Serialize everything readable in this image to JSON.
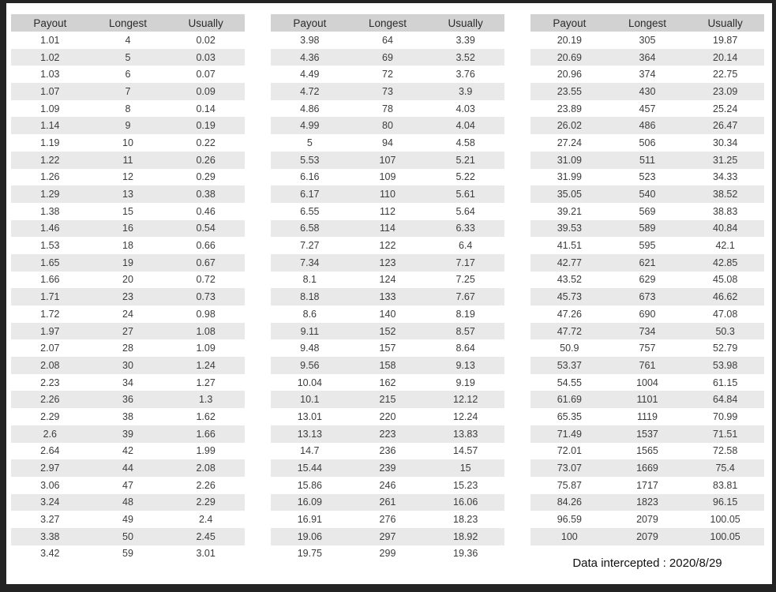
{
  "columns": [
    "Payout",
    "Longest",
    "Usually"
  ],
  "tables": [
    {
      "rows": [
        [
          "1.01",
          "4",
          "0.02"
        ],
        [
          "1.02",
          "5",
          "0.03"
        ],
        [
          "1.03",
          "6",
          "0.07"
        ],
        [
          "1.07",
          "7",
          "0.09"
        ],
        [
          "1.09",
          "8",
          "0.14"
        ],
        [
          "1.14",
          "9",
          "0.19"
        ],
        [
          "1.19",
          "10",
          "0.22"
        ],
        [
          "1.22",
          "11",
          "0.26"
        ],
        [
          "1.26",
          "12",
          "0.29"
        ],
        [
          "1.29",
          "13",
          "0.38"
        ],
        [
          "1.38",
          "15",
          "0.46"
        ],
        [
          "1.46",
          "16",
          "0.54"
        ],
        [
          "1.53",
          "18",
          "0.66"
        ],
        [
          "1.65",
          "19",
          "0.67"
        ],
        [
          "1.66",
          "20",
          "0.72"
        ],
        [
          "1.71",
          "23",
          "0.73"
        ],
        [
          "1.72",
          "24",
          "0.98"
        ],
        [
          "1.97",
          "27",
          "1.08"
        ],
        [
          "2.07",
          "28",
          "1.09"
        ],
        [
          "2.08",
          "30",
          "1.24"
        ],
        [
          "2.23",
          "34",
          "1.27"
        ],
        [
          "2.26",
          "36",
          "1.3"
        ],
        [
          "2.29",
          "38",
          "1.62"
        ],
        [
          "2.6",
          "39",
          "1.66"
        ],
        [
          "2.64",
          "42",
          "1.99"
        ],
        [
          "2.97",
          "44",
          "2.08"
        ],
        [
          "3.06",
          "47",
          "2.26"
        ],
        [
          "3.24",
          "48",
          "2.29"
        ],
        [
          "3.27",
          "49",
          "2.4"
        ],
        [
          "3.38",
          "50",
          "2.45"
        ],
        [
          "3.42",
          "59",
          "3.01"
        ]
      ]
    },
    {
      "rows": [
        [
          "3.98",
          "64",
          "3.39"
        ],
        [
          "4.36",
          "69",
          "3.52"
        ],
        [
          "4.49",
          "72",
          "3.76"
        ],
        [
          "4.72",
          "73",
          "3.9"
        ],
        [
          "4.86",
          "78",
          "4.03"
        ],
        [
          "4.99",
          "80",
          "4.04"
        ],
        [
          "5",
          "94",
          "4.58"
        ],
        [
          "5.53",
          "107",
          "5.21"
        ],
        [
          "6.16",
          "109",
          "5.22"
        ],
        [
          "6.17",
          "110",
          "5.61"
        ],
        [
          "6.55",
          "112",
          "5.64"
        ],
        [
          "6.58",
          "114",
          "6.33"
        ],
        [
          "7.27",
          "122",
          "6.4"
        ],
        [
          "7.34",
          "123",
          "7.17"
        ],
        [
          "8.1",
          "124",
          "7.25"
        ],
        [
          "8.18",
          "133",
          "7.67"
        ],
        [
          "8.6",
          "140",
          "8.19"
        ],
        [
          "9.11",
          "152",
          "8.57"
        ],
        [
          "9.48",
          "157",
          "8.64"
        ],
        [
          "9.56",
          "158",
          "9.13"
        ],
        [
          "10.04",
          "162",
          "9.19"
        ],
        [
          "10.1",
          "215",
          "12.12"
        ],
        [
          "13.01",
          "220",
          "12.24"
        ],
        [
          "13.13",
          "223",
          "13.83"
        ],
        [
          "14.7",
          "236",
          "14.57"
        ],
        [
          "15.44",
          "239",
          "15"
        ],
        [
          "15.86",
          "246",
          "15.23"
        ],
        [
          "16.09",
          "261",
          "16.06"
        ],
        [
          "16.91",
          "276",
          "18.23"
        ],
        [
          "19.06",
          "297",
          "18.92"
        ],
        [
          "19.75",
          "299",
          "19.36"
        ]
      ]
    },
    {
      "rows": [
        [
          "20.19",
          "305",
          "19.87"
        ],
        [
          "20.69",
          "364",
          "20.14"
        ],
        [
          "20.96",
          "374",
          "22.75"
        ],
        [
          "23.55",
          "430",
          "23.09"
        ],
        [
          "23.89",
          "457",
          "25.24"
        ],
        [
          "26.02",
          "486",
          "26.47"
        ],
        [
          "27.24",
          "506",
          "30.34"
        ],
        [
          "31.09",
          "511",
          "31.25"
        ],
        [
          "31.99",
          "523",
          "34.33"
        ],
        [
          "35.05",
          "540",
          "38.52"
        ],
        [
          "39.21",
          "569",
          "38.83"
        ],
        [
          "39.53",
          "589",
          "40.84"
        ],
        [
          "41.51",
          "595",
          "42.1"
        ],
        [
          "42.77",
          "621",
          "42.85"
        ],
        [
          "43.52",
          "629",
          "45.08"
        ],
        [
          "45.73",
          "673",
          "46.62"
        ],
        [
          "47.26",
          "690",
          "47.08"
        ],
        [
          "47.72",
          "734",
          "50.3"
        ],
        [
          "50.9",
          "757",
          "52.79"
        ],
        [
          "53.37",
          "761",
          "53.98"
        ],
        [
          "54.55",
          "1004",
          "61.15"
        ],
        [
          "61.69",
          "1101",
          "64.84"
        ],
        [
          "65.35",
          "1119",
          "70.99"
        ],
        [
          "71.49",
          "1537",
          "71.51"
        ],
        [
          "72.01",
          "1565",
          "72.58"
        ],
        [
          "73.07",
          "1669",
          "75.4"
        ],
        [
          "75.87",
          "1717",
          "83.81"
        ],
        [
          "84.26",
          "1823",
          "96.15"
        ],
        [
          "96.59",
          "2079",
          "100.05"
        ],
        [
          "100",
          "2079",
          "100.05"
        ]
      ]
    }
  ],
  "footer": {
    "label": "Data intercepted : 2020/8/29"
  },
  "colors": {
    "frame": "#232323",
    "header_bg": "#d2d2d2",
    "stripe_bg": "#e9e9e9",
    "body_text": "#3c3c3c"
  }
}
